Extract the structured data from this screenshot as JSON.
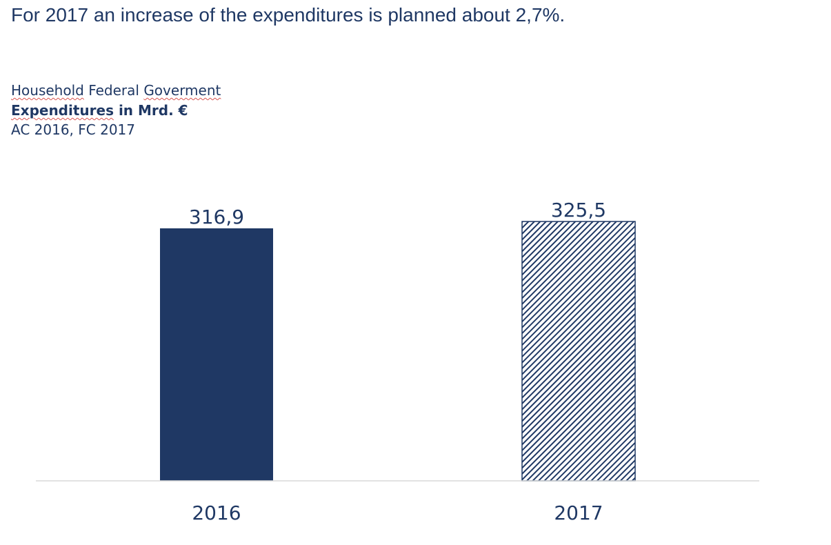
{
  "headline": "For 2017 an increase of the expenditures is planned about 2,7%.",
  "subtitle": {
    "line1_words": [
      "Household",
      "Federal",
      "Goverment"
    ],
    "line2_word": "Expenditures",
    "line2_rest": " in Mrd. €",
    "line3": "AC 2016, FC 2017"
  },
  "colors": {
    "text": "#1f3864",
    "bar_2016": "#1f3864",
    "bar_2017_hatch": "#1f3864",
    "baseline": "#d9d9d9"
  },
  "chart_data": {
    "type": "bar",
    "categories": [
      "2016",
      "2017"
    ],
    "values": [
      316.9,
      325.5
    ],
    "value_labels": [
      "316,9",
      "325,5"
    ],
    "styles": [
      "solid",
      "hatched"
    ],
    "title": "",
    "xlabel": "",
    "ylabel": "",
    "grid": false
  }
}
